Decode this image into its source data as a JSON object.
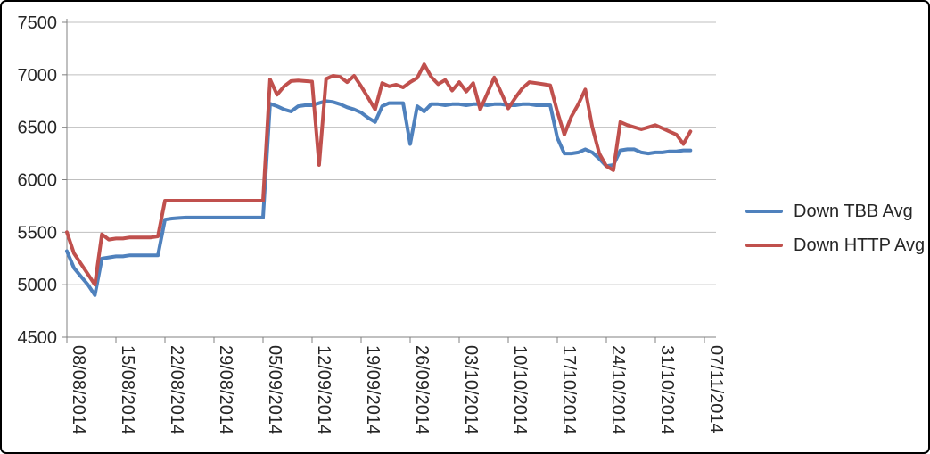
{
  "chart_data": {
    "type": "line",
    "title": "",
    "grid": true,
    "legend_position": "right",
    "y_axis": {
      "min": 4500,
      "max": 7500,
      "step": 500,
      "ticks": [
        7500,
        7000,
        6500,
        6000,
        5500,
        5000,
        4500
      ]
    },
    "x_axis": {
      "tick_labels": [
        "08/08/2014",
        "15/08/2014",
        "22/08/2014",
        "29/08/2014",
        "05/09/2014",
        "12/09/2014",
        "19/09/2014",
        "26/09/2014",
        "03/10/2014",
        "10/10/2014",
        "17/10/2014",
        "24/10/2014",
        "31/10/2014",
        "07/11/2014"
      ],
      "days_per_tick": 7,
      "start_date": "08/08/2014"
    },
    "series": [
      {
        "name": "Down TBB Avg",
        "color": "#4F81BD",
        "values": [
          5320,
          5160,
          5080,
          5000,
          4900,
          5250,
          5260,
          5270,
          5270,
          5280,
          5280,
          5280,
          5280,
          5280,
          5620,
          5630,
          5635,
          5640,
          5640,
          5640,
          5640,
          5640,
          5640,
          5640,
          5640,
          5640,
          5640,
          5640,
          5640,
          6725,
          6700,
          6670,
          6650,
          6700,
          6710,
          6710,
          6730,
          6750,
          6740,
          6720,
          6690,
          6670,
          6640,
          6590,
          6550,
          6700,
          6730,
          6730,
          6730,
          6340,
          6700,
          6650,
          6720,
          6720,
          6710,
          6720,
          6720,
          6710,
          6720,
          6720,
          6710,
          6720,
          6720,
          6710,
          6710,
          6720,
          6720,
          6710,
          6710,
          6710,
          6400,
          6250,
          6250,
          6260,
          6290,
          6260,
          6200,
          6130,
          6140,
          6280,
          6290,
          6290,
          6260,
          6250,
          6260,
          6260,
          6270,
          6270,
          6280,
          6280
        ]
      },
      {
        "name": "Down HTTP Avg",
        "color": "#C0504D",
        "values": [
          5500,
          5300,
          5200,
          5100,
          5000,
          5480,
          5430,
          5440,
          5440,
          5450,
          5450,
          5450,
          5450,
          5460,
          5800,
          5800,
          5800,
          5800,
          5800,
          5800,
          5800,
          5800,
          5800,
          5800,
          5800,
          5800,
          5800,
          5800,
          5800,
          6955,
          6810,
          6890,
          6940,
          6945,
          6940,
          6935,
          6140,
          6960,
          6990,
          6980,
          6930,
          6990,
          6890,
          6780,
          6670,
          6920,
          6890,
          6905,
          6880,
          6930,
          6970,
          7100,
          6980,
          6910,
          6950,
          6850,
          6930,
          6840,
          6920,
          6670,
          6820,
          6975,
          6830,
          6680,
          6780,
          6870,
          6930,
          6920,
          6910,
          6900,
          6650,
          6430,
          6600,
          6720,
          6860,
          6500,
          6250,
          6130,
          6090,
          6550,
          6520,
          6500,
          6480,
          6500,
          6520,
          6490,
          6460,
          6430,
          6340,
          6460
        ]
      }
    ],
    "colors": {
      "gridline": "#BFBFBF",
      "axis": "#808080",
      "tick_text": "#262626",
      "frame_border": "#000000",
      "background": "#FFFFFF"
    }
  },
  "legend": {
    "items": [
      {
        "label": "Down TBB Avg"
      },
      {
        "label": "Down HTTP Avg"
      }
    ]
  }
}
